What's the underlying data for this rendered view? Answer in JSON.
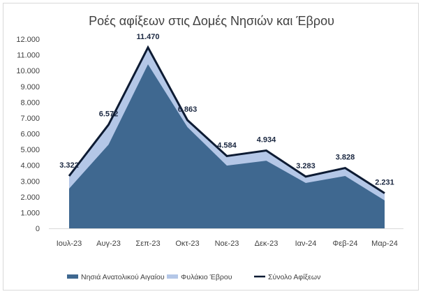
{
  "chart_data": {
    "type": "area",
    "title": "Ροές αφίξεων στις Δομές Νησιών και Έβρου",
    "categories": [
      "Ιουλ-23",
      "Αυγ-23",
      "Σεπ-23",
      "Οκτ-23",
      "Νοε-23",
      "Δεκ-23",
      "Ιαν-24",
      "Φεβ-24",
      "Μαρ-24"
    ],
    "series": [
      {
        "name": "Νησιά Ανατολικού Αιγαίου",
        "kind": "stacked-area",
        "color": "#3F6890",
        "values": [
          2520,
          5310,
          10400,
          6420,
          3980,
          4290,
          2880,
          3320,
          1770
        ]
      },
      {
        "name": "Φυλάκιο Έβρου",
        "kind": "stacked-area",
        "color": "#B4C7E7",
        "values": [
          802,
          1262,
          1070,
          443,
          604,
          644,
          403,
          508,
          461
        ]
      },
      {
        "name": "Σύνολο Αφίξεων",
        "kind": "line",
        "color": "#0D1B33",
        "values": [
          3322,
          6572,
          11470,
          6863,
          4584,
          4934,
          3283,
          3828,
          2231
        ]
      }
    ],
    "data_labels": [
      "3.322",
      "6.572",
      "11.470",
      "6.863",
      "4.584",
      "4.934",
      "3.283",
      "3.828",
      "2.231"
    ],
    "y_ticks": [
      "0",
      "1.000",
      "2.000",
      "3.000",
      "4.000",
      "5.000",
      "6.000",
      "7.000",
      "8.000",
      "9.000",
      "10.000",
      "11.000",
      "12.000"
    ],
    "ylim": [
      0,
      12000
    ],
    "grid": false,
    "legend": "bottom"
  }
}
